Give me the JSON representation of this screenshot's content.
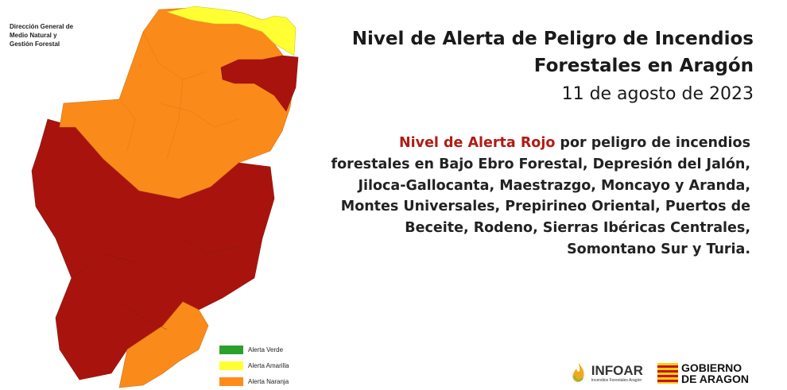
{
  "agency": {
    "lines": [
      "Dirección General de",
      "Medio Natural y",
      "Gestión Forestal"
    ]
  },
  "legend": [
    {
      "label": "Alerta Verde",
      "color": "#2ca02c"
    },
    {
      "label": "Alerta Amarilla",
      "color": "#ffff33"
    },
    {
      "label": "Alerta Naranja",
      "color": "#ff8c1a"
    }
  ],
  "map_colors": {
    "yellow": "#ffff33",
    "orange": "#fa8a1a",
    "red": "#a8140d"
  },
  "title": {
    "line1": "Nivel de Alerta de Peligro de Incendios",
    "line2": "Forestales en Aragón",
    "date": "11 de agosto de 2023"
  },
  "message": {
    "highlight": "Nivel de Alerta Rojo",
    "rest": " por peligro de incendios forestales en Bajo Ebro Forestal, Depresión del Jalón, Jiloca-Gallocanta, Maestrazgo, Moncayo y Aranda, Montes Universales, Prepirineo Oriental, Puertos de Beceite, Rodeno, Sierras Ibéricas Centrales, Somontano Sur y Turia."
  },
  "logos": {
    "infoar_name": "INFOAR",
    "infoar_sub": "Incendios Forestales Aragón",
    "gobierno_line1": "GOBIERNO",
    "gobierno_line2": "DE ARAGON"
  }
}
